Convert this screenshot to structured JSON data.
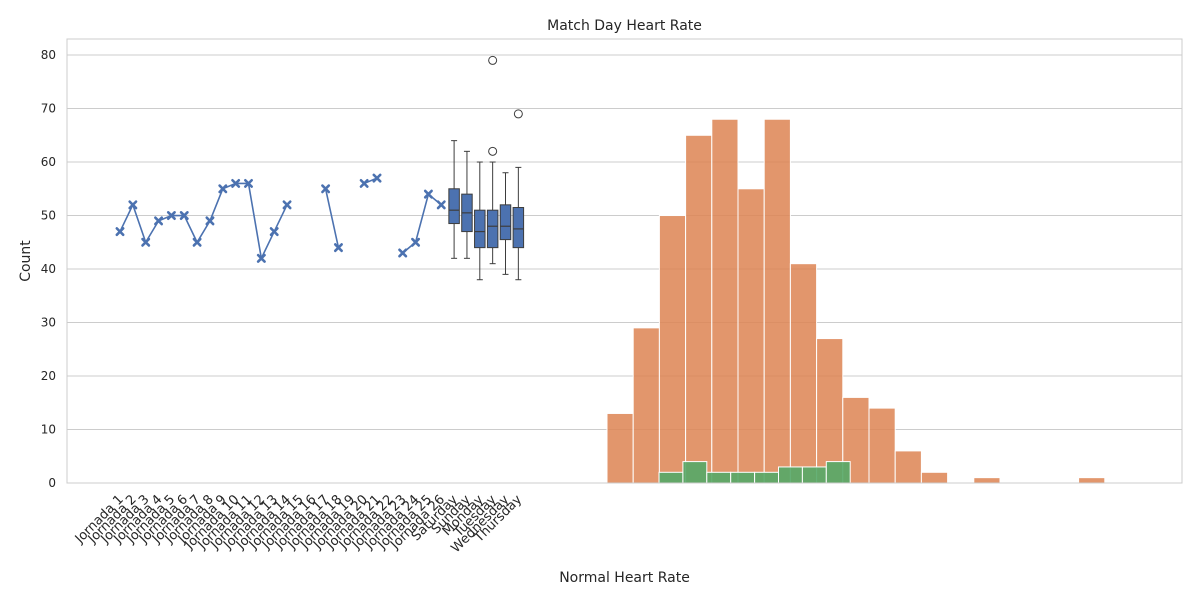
{
  "chart_data": {
    "type": "bar",
    "title": "Match Day Heart Rate",
    "xlabel": "Normal Heart Rate",
    "ylabel": "Count",
    "ylim": [
      0,
      83
    ],
    "yticks": [
      0,
      10,
      20,
      30,
      40,
      50,
      60,
      70,
      80
    ],
    "grid": true,
    "colors": {
      "line": "#4c72b0",
      "box": "#4c72b0",
      "hist1": "#dd8452",
      "hist2": "#55a868",
      "grid": "#cccccc",
      "frame": "#cccccc"
    },
    "categories": [
      "Jornada 1",
      "Jornada 2",
      "Jornada 3",
      "Jornada 4",
      "Jornada 5",
      "Jornada 6",
      "Jornada 7",
      "Jornada 8",
      "Jornada 9",
      "Jornada 10",
      "Jornada 11",
      "Jornada 12",
      "Jornada 13",
      "Jornada 14",
      "Jornada 15",
      "Jornada 16",
      "Jornada 17",
      "Jornada 18",
      "Jornada 19",
      "Jornada 20",
      "Jornada 21",
      "Jornada 22",
      "Jornada 23",
      "Jornada 24",
      "Jornada 25",
      "Jornada 26",
      "Saturday",
      "Sunday",
      "Monday",
      "Tuesday",
      "Wednesday",
      "Thursday"
    ],
    "line_series": {
      "values": [
        47,
        52,
        45,
        49,
        50,
        50,
        45,
        49,
        55,
        56,
        56,
        42,
        47,
        52,
        null,
        null,
        55,
        44,
        null,
        56,
        57,
        null,
        43,
        45,
        54,
        52
      ]
    },
    "box_series": [
      {
        "label": "Saturday",
        "whisker_low": 42,
        "q1": 48.5,
        "median": 51,
        "q3": 55,
        "whisker_high": 64,
        "outliers": []
      },
      {
        "label": "Sunday",
        "whisker_low": 42,
        "q1": 47,
        "median": 50.5,
        "q3": 54,
        "whisker_high": 62,
        "outliers": []
      },
      {
        "label": "Monday",
        "whisker_low": 38,
        "q1": 44,
        "median": 47,
        "q3": 51,
        "whisker_high": 60,
        "outliers": []
      },
      {
        "label": "Tuesday",
        "whisker_low": 41,
        "q1": 44,
        "median": 48,
        "q3": 51,
        "whisker_high": 60,
        "outliers": [
          62,
          79
        ]
      },
      {
        "label": "Wednesday",
        "whisker_low": 39,
        "q1": 45.5,
        "median": 48,
        "q3": 52,
        "whisker_high": 58,
        "outliers": []
      },
      {
        "label": "Thursday",
        "whisker_low": 38,
        "q1": 44,
        "median": 47.5,
        "q3": 51.5,
        "whisker_high": 59,
        "outliers": [
          69
        ]
      }
    ],
    "histograms": [
      {
        "counts": [
          13,
          29,
          50,
          65,
          68,
          55,
          68,
          41,
          27,
          16,
          14,
          6,
          2,
          0,
          1,
          0,
          0,
          0,
          1
        ]
      },
      {
        "counts": [
          2,
          4,
          2,
          2,
          2,
          3,
          3,
          4
        ]
      }
    ]
  }
}
